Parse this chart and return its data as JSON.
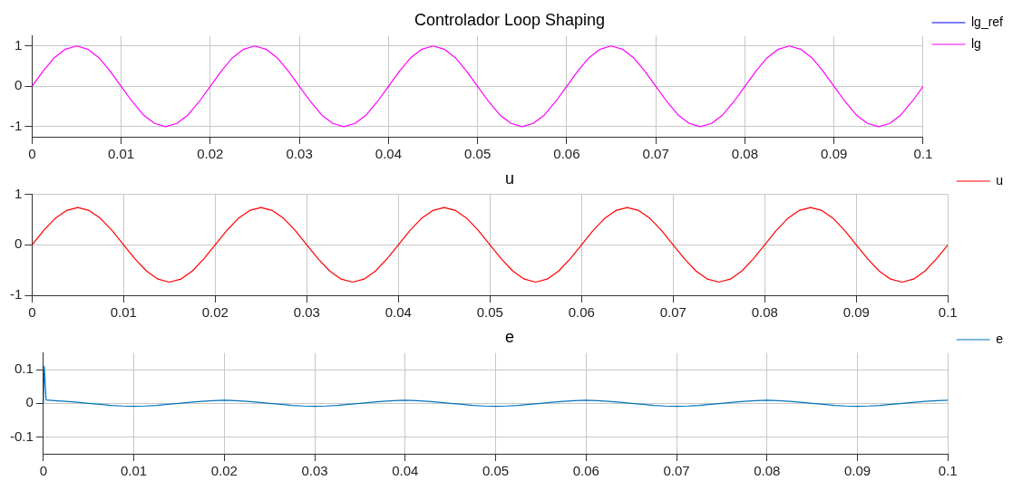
{
  "chart_data": [
    {
      "type": "line",
      "title": "Controlador Loop Shaping",
      "x": [
        0,
        0.00125,
        0.0025,
        0.00375,
        0.005,
        0.00625,
        0.0075,
        0.00875,
        0.01,
        0.01125,
        0.0125,
        0.01375,
        0.015,
        0.01625,
        0.0175,
        0.01875,
        0.02,
        0.02125,
        0.0225,
        0.02375,
        0.025,
        0.02625,
        0.0275,
        0.02875,
        0.03,
        0.03125,
        0.0325,
        0.03375,
        0.035,
        0.03625,
        0.0375,
        0.03875,
        0.04,
        0.04125,
        0.0425,
        0.04375,
        0.045,
        0.04625,
        0.0475,
        0.04875,
        0.05,
        0.05125,
        0.0525,
        0.05375,
        0.055,
        0.05625,
        0.0575,
        0.05875,
        0.06,
        0.06125,
        0.0625,
        0.06375,
        0.065,
        0.06625,
        0.0675,
        0.06875,
        0.07,
        0.07125,
        0.0725,
        0.07375,
        0.075,
        0.07625,
        0.0775,
        0.07875,
        0.08,
        0.08125,
        0.0825,
        0.08375,
        0.085,
        0.08625,
        0.0875,
        0.08875,
        0.09,
        0.09125,
        0.0925,
        0.09375,
        0.095,
        0.09625,
        0.0975,
        0.09875,
        0.1
      ],
      "series": [
        {
          "name": "lg_ref",
          "color": "#0000ff",
          "values": [
            null,
            null,
            null,
            null,
            null,
            null,
            null,
            null,
            null,
            null,
            null,
            null,
            null,
            null,
            null,
            null,
            null,
            null,
            null,
            null,
            null,
            null,
            null,
            null,
            null,
            null,
            null,
            null,
            null,
            null,
            null,
            null,
            null,
            null,
            null,
            null,
            null,
            null,
            null,
            null,
            null,
            null,
            null,
            null,
            null,
            null,
            null,
            null,
            null,
            null,
            null,
            null,
            null,
            null,
            null,
            null,
            null,
            null,
            null,
            null,
            null,
            null,
            null,
            null,
            null,
            null,
            null,
            null,
            null,
            null,
            null,
            null,
            null,
            null,
            null,
            null,
            null,
            null,
            null,
            null,
            null
          ]
        },
        {
          "name": "lg",
          "color": "#ff00ff",
          "values": [
            0,
            0.38,
            0.71,
            0.92,
            1,
            0.92,
            0.71,
            0.38,
            0,
            -0.38,
            -0.71,
            -0.92,
            -1,
            -0.92,
            -0.71,
            -0.38,
            0,
            0.38,
            0.71,
            0.92,
            1,
            0.92,
            0.71,
            0.38,
            0,
            -0.38,
            -0.71,
            -0.92,
            -1,
            -0.92,
            -0.71,
            -0.38,
            0,
            0.38,
            0.71,
            0.92,
            1,
            0.92,
            0.71,
            0.38,
            0,
            -0.38,
            -0.71,
            -0.92,
            -1,
            -0.92,
            -0.71,
            -0.38,
            0,
            0.38,
            0.71,
            0.92,
            1,
            0.92,
            0.71,
            0.38,
            0,
            -0.38,
            -0.71,
            -0.92,
            -1,
            -0.92,
            -0.71,
            -0.38,
            0,
            0.38,
            0.71,
            0.92,
            1,
            0.92,
            0.71,
            0.38,
            0,
            -0.38,
            -0.71,
            -0.92,
            -1,
            -0.92,
            -0.71,
            -0.38,
            0
          ]
        }
      ],
      "xlim": [
        0,
        0.1
      ],
      "xticks": [
        0,
        0.01,
        0.02,
        0.03,
        0.04,
        0.05,
        0.06,
        0.07,
        0.08,
        0.09,
        0.1
      ],
      "ylim": [
        -1.25,
        1.25
      ],
      "yticks": [
        -1,
        0,
        1
      ],
      "grid": true,
      "legend": "top right"
    },
    {
      "type": "line",
      "title": "u",
      "x": [
        0,
        0.00125,
        0.0025,
        0.00375,
        0.005,
        0.00625,
        0.0075,
        0.00875,
        0.01,
        0.01125,
        0.0125,
        0.01375,
        0.015,
        0.01625,
        0.0175,
        0.01875,
        0.02,
        0.02125,
        0.0225,
        0.02375,
        0.025,
        0.02625,
        0.0275,
        0.02875,
        0.03,
        0.03125,
        0.0325,
        0.03375,
        0.035,
        0.03625,
        0.0375,
        0.03875,
        0.04,
        0.04125,
        0.0425,
        0.04375,
        0.045,
        0.04625,
        0.0475,
        0.04875,
        0.05,
        0.05125,
        0.0525,
        0.05375,
        0.055,
        0.05625,
        0.0575,
        0.05875,
        0.06,
        0.06125,
        0.0625,
        0.06375,
        0.065,
        0.06625,
        0.0675,
        0.06875,
        0.07,
        0.07125,
        0.0725,
        0.07375,
        0.075,
        0.07625,
        0.0775,
        0.07875,
        0.08,
        0.08125,
        0.0825,
        0.08375,
        0.085,
        0.08625,
        0.0875,
        0.08875,
        0.09,
        0.09125,
        0.0925,
        0.09375,
        0.095,
        0.09625,
        0.0975,
        0.09875,
        0.1
      ],
      "series": [
        {
          "name": "u",
          "color": "#ff0000",
          "values": [
            0,
            0.28,
            0.52,
            0.68,
            0.74,
            0.68,
            0.52,
            0.28,
            0,
            -0.28,
            -0.52,
            -0.68,
            -0.74,
            -0.68,
            -0.52,
            -0.28,
            0,
            0.28,
            0.52,
            0.68,
            0.74,
            0.68,
            0.52,
            0.28,
            0,
            -0.28,
            -0.52,
            -0.68,
            -0.74,
            -0.68,
            -0.52,
            -0.28,
            0,
            0.28,
            0.52,
            0.68,
            0.74,
            0.68,
            0.52,
            0.28,
            0,
            -0.28,
            -0.52,
            -0.68,
            -0.74,
            -0.68,
            -0.52,
            -0.28,
            0,
            0.28,
            0.52,
            0.68,
            0.74,
            0.68,
            0.52,
            0.28,
            0,
            -0.28,
            -0.52,
            -0.68,
            -0.74,
            -0.68,
            -0.52,
            -0.28,
            0,
            0.28,
            0.52,
            0.68,
            0.74,
            0.68,
            0.52,
            0.28,
            0,
            -0.28,
            -0.52,
            -0.68,
            -0.74,
            -0.68,
            -0.52,
            -0.28,
            0
          ]
        }
      ],
      "xlim": [
        0,
        0.1
      ],
      "xticks": [
        0,
        0.01,
        0.02,
        0.03,
        0.04,
        0.05,
        0.06,
        0.07,
        0.08,
        0.09,
        0.1
      ],
      "ylim": [
        -1,
        1
      ],
      "yticks": [
        -1,
        0,
        1
      ],
      "grid": true,
      "legend": "top right"
    },
    {
      "type": "line",
      "title": "e",
      "x": [
        0,
        0.0001,
        0.0003,
        0.00125,
        0.0025,
        0.00375,
        0.005,
        0.00625,
        0.0075,
        0.00875,
        0.01,
        0.01125,
        0.0125,
        0.01375,
        0.015,
        0.01625,
        0.0175,
        0.01875,
        0.02,
        0.02125,
        0.0225,
        0.02375,
        0.025,
        0.02625,
        0.0275,
        0.02875,
        0.03,
        0.03125,
        0.0325,
        0.03375,
        0.035,
        0.03625,
        0.0375,
        0.03875,
        0.04,
        0.04125,
        0.0425,
        0.04375,
        0.045,
        0.04625,
        0.0475,
        0.04875,
        0.05,
        0.05125,
        0.0525,
        0.05375,
        0.055,
        0.05625,
        0.0575,
        0.05875,
        0.06,
        0.06125,
        0.0625,
        0.06375,
        0.065,
        0.06625,
        0.0675,
        0.06875,
        0.07,
        0.07125,
        0.0725,
        0.07375,
        0.075,
        0.07625,
        0.0775,
        0.07875,
        0.08,
        0.08125,
        0.0825,
        0.08375,
        0.085,
        0.08625,
        0.0875,
        0.08875,
        0.09,
        0.09125,
        0.0925,
        0.09375,
        0.095,
        0.09625,
        0.0975,
        0.09875,
        0.1
      ],
      "series": [
        {
          "name": "e",
          "color": "#0072bd",
          "values": [
            0,
            0.11,
            0.01,
            0.008,
            0.006,
            0.003,
            0,
            -0.003,
            -0.006,
            -0.008,
            -0.009,
            -0.008,
            -0.006,
            -0.003,
            0,
            0.003,
            0.006,
            0.008,
            0.009,
            0.008,
            0.006,
            0.003,
            0,
            -0.003,
            -0.006,
            -0.008,
            -0.009,
            -0.008,
            -0.006,
            -0.003,
            0,
            0.003,
            0.006,
            0.008,
            0.009,
            0.008,
            0.006,
            0.003,
            0,
            -0.003,
            -0.006,
            -0.008,
            -0.009,
            -0.008,
            -0.006,
            -0.003,
            0,
            0.003,
            0.006,
            0.008,
            0.009,
            0.008,
            0.006,
            0.003,
            0,
            -0.003,
            -0.006,
            -0.008,
            -0.009,
            -0.008,
            -0.006,
            -0.003,
            0,
            0.003,
            0.006,
            0.008,
            0.009,
            0.008,
            0.006,
            0.003,
            0,
            -0.003,
            -0.006,
            -0.008,
            -0.009,
            -0.008,
            -0.006,
            -0.003,
            0,
            0.003,
            0.006,
            0.008,
            0.009
          ]
        }
      ],
      "xlim": [
        0,
        0.1
      ],
      "xticks": [
        0,
        0.01,
        0.02,
        0.03,
        0.04,
        0.05,
        0.06,
        0.07,
        0.08,
        0.09,
        0.1
      ],
      "ylim": [
        -0.15,
        0.15
      ],
      "yticks": [
        -0.1,
        0,
        0.1
      ],
      "grid": true,
      "legend": "top right"
    }
  ]
}
